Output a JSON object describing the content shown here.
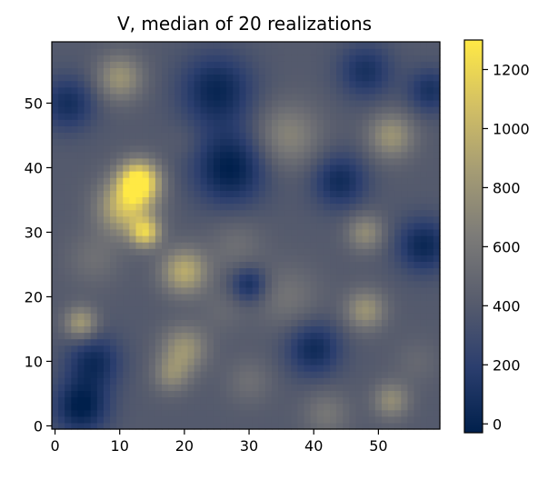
{
  "chart_data": {
    "type": "heatmap",
    "title": "V, median of 20 realizations",
    "xlabel": "",
    "ylabel": "",
    "xlim": [
      -0.5,
      59.5
    ],
    "ylim": [
      -0.5,
      59.5
    ],
    "xticks": [
      0,
      10,
      20,
      30,
      40,
      50
    ],
    "yticks": [
      0,
      10,
      20,
      30,
      40,
      50
    ],
    "grid_size": [
      60,
      60
    ],
    "origin": "lower",
    "colormap": "cividis",
    "colormap_stops": [
      "#00204c",
      "#2b3e6e",
      "#575c6d",
      "#7c7b78",
      "#a59c74",
      "#d3c064",
      "#ffe945"
    ],
    "colorbar": {
      "range": [
        -30,
        1300
      ],
      "ticks": [
        0,
        200,
        400,
        600,
        800,
        1000,
        1200
      ]
    },
    "blobs": [
      {
        "x": 13,
        "y": 38,
        "value": 1300,
        "sigma": 2.2
      },
      {
        "x": 11,
        "y": 34,
        "value": 1050,
        "sigma": 3.0
      },
      {
        "x": 14,
        "y": 30,
        "value": 1050,
        "sigma": 1.6
      },
      {
        "x": 20,
        "y": 24,
        "value": 950,
        "sigma": 2.5
      },
      {
        "x": 10,
        "y": 54,
        "value": 800,
        "sigma": 2.5
      },
      {
        "x": 52,
        "y": 45,
        "value": 800,
        "sigma": 2.5
      },
      {
        "x": 36,
        "y": 45,
        "value": 700,
        "sigma": 3.5
      },
      {
        "x": 48,
        "y": 30,
        "value": 750,
        "sigma": 2.0
      },
      {
        "x": 48,
        "y": 18,
        "value": 800,
        "sigma": 2.2
      },
      {
        "x": 52,
        "y": 4,
        "value": 750,
        "sigma": 2.0
      },
      {
        "x": 4,
        "y": 16,
        "value": 850,
        "sigma": 1.8
      },
      {
        "x": 20,
        "y": 12,
        "value": 800,
        "sigma": 2.5
      },
      {
        "x": 18,
        "y": 8,
        "value": 700,
        "sigma": 2.0
      },
      {
        "x": 42,
        "y": 2,
        "value": 600,
        "sigma": 2.5
      },
      {
        "x": 30,
        "y": 7,
        "value": 550,
        "sigma": 2.5
      },
      {
        "x": 36,
        "y": 20,
        "value": 580,
        "sigma": 3.5
      },
      {
        "x": 28,
        "y": 28,
        "value": 550,
        "sigma": 3.0
      },
      {
        "x": 6,
        "y": 26,
        "value": 550,
        "sigma": 3.0
      },
      {
        "x": 56,
        "y": 10,
        "value": 500,
        "sigma": 2.5
      },
      {
        "x": 20,
        "y": 44,
        "value": 450,
        "sigma": 2.0
      },
      {
        "x": 26,
        "y": 18,
        "value": 500,
        "sigma": 2.5
      },
      {
        "x": 4,
        "y": 3,
        "value": -30,
        "sigma": 3.0
      },
      {
        "x": 27,
        "y": 40,
        "value": -30,
        "sigma": 4.0
      },
      {
        "x": 25,
        "y": 52,
        "value": 20,
        "sigma": 4.0
      },
      {
        "x": 2,
        "y": 50,
        "value": 80,
        "sigma": 3.0
      },
      {
        "x": 57,
        "y": 28,
        "value": 30,
        "sigma": 3.0
      },
      {
        "x": 44,
        "y": 38,
        "value": 60,
        "sigma": 3.0
      },
      {
        "x": 40,
        "y": 12,
        "value": 50,
        "sigma": 3.0
      },
      {
        "x": 6,
        "y": 10,
        "value": 60,
        "sigma": 3.0
      },
      {
        "x": 30,
        "y": 22,
        "value": 60,
        "sigma": 2.0
      },
      {
        "x": 48,
        "y": 55,
        "value": 100,
        "sigma": 3.0
      },
      {
        "x": 58,
        "y": 52,
        "value": 100,
        "sigma": 2.5
      }
    ]
  }
}
